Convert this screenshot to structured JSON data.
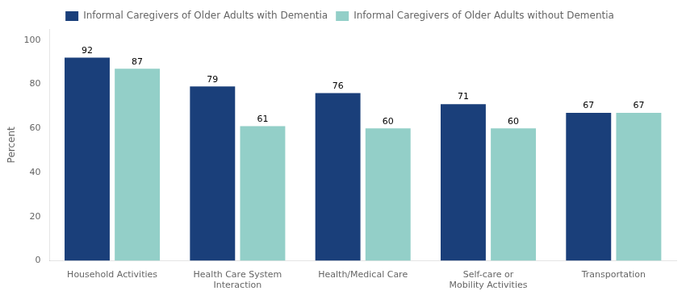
{
  "chart_data": {
    "type": "bar",
    "categories": [
      "Household Activities",
      "Health Care System Interaction",
      "Health/Medical Care",
      "Self-care or Mobility Activities",
      "Transportation"
    ],
    "series": [
      {
        "name": "Informal Caregivers of Older Adults with Dementia",
        "color": "#1a3f7a",
        "values": [
          92,
          79,
          76,
          71,
          67
        ]
      },
      {
        "name": "Informal Caregivers of Older Adults without Dementia",
        "color": "#93cfc8",
        "values": [
          87,
          61,
          60,
          60,
          67
        ]
      }
    ],
    "ylabel": "Percent",
    "ylim": [
      0,
      105
    ],
    "yticks": [
      0,
      20,
      40,
      60,
      80,
      100
    ],
    "grid": false,
    "legend": "top",
    "data_labels": true
  }
}
